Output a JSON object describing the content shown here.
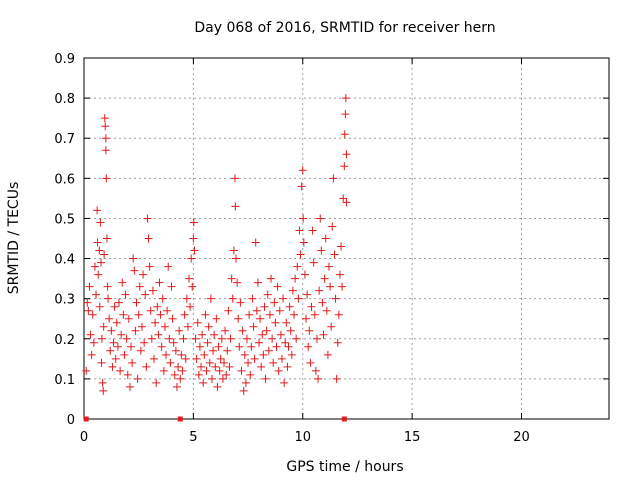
{
  "chart_data": {
    "type": "scatter",
    "title": "Day 068 of 2016, SRMTID for receiver hern",
    "xlabel": "GPS time / hours",
    "ylabel": "SRMTID / TECUs",
    "xlim": [
      0,
      24
    ],
    "ylim": [
      0,
      0.9
    ],
    "xticks": [
      0,
      5,
      10,
      15,
      20
    ],
    "yticks": [
      0,
      0.1,
      0.2,
      0.3,
      0.4,
      0.5,
      0.6,
      0.7,
      0.8,
      0.9
    ],
    "grid": true,
    "color": "#e41a1c",
    "marker": "plus",
    "zero_markers": [
      0.1,
      4.4,
      11.9
    ],
    "series": [
      {
        "name": "SRMTID",
        "points": [
          [
            0.1,
            0.12
          ],
          [
            0.15,
            0.29
          ],
          [
            0.2,
            0.27
          ],
          [
            0.25,
            0.33
          ],
          [
            0.3,
            0.21
          ],
          [
            0.35,
            0.16
          ],
          [
            0.4,
            0.26
          ],
          [
            0.45,
            0.19
          ],
          [
            0.5,
            0.38
          ],
          [
            0.55,
            0.31
          ],
          [
            0.6,
            0.52
          ],
          [
            0.62,
            0.44
          ],
          [
            0.65,
            0.36
          ],
          [
            0.7,
            0.42
          ],
          [
            0.72,
            0.28
          ],
          [
            0.75,
            0.49
          ],
          [
            0.78,
            0.39
          ],
          [
            0.8,
            0.14
          ],
          [
            0.82,
            0.2
          ],
          [
            0.85,
            0.09
          ],
          [
            0.88,
            0.07
          ],
          [
            0.9,
            0.23
          ],
          [
            0.92,
            0.41
          ],
          [
            0.95,
            0.75
          ],
          [
            0.97,
            0.73
          ],
          [
            1.0,
            0.7
          ],
          [
            1.0,
            0.67
          ],
          [
            1.02,
            0.6
          ],
          [
            1.05,
            0.45
          ],
          [
            1.08,
            0.33
          ],
          [
            1.1,
            0.3
          ],
          [
            1.15,
            0.25
          ],
          [
            1.2,
            0.17
          ],
          [
            1.25,
            0.22
          ],
          [
            1.3,
            0.13
          ],
          [
            1.35,
            0.19
          ],
          [
            1.4,
            0.28
          ],
          [
            1.45,
            0.15
          ],
          [
            1.5,
            0.24
          ],
          [
            1.55,
            0.18
          ],
          [
            1.6,
            0.29
          ],
          [
            1.65,
            0.12
          ],
          [
            1.7,
            0.21
          ],
          [
            1.75,
            0.34
          ],
          [
            1.8,
            0.26
          ],
          [
            1.85,
            0.16
          ],
          [
            1.9,
            0.31
          ],
          [
            1.95,
            0.2
          ],
          [
            2.0,
            0.11
          ],
          [
            2.05,
            0.25
          ],
          [
            2.1,
            0.08
          ],
          [
            2.15,
            0.18
          ],
          [
            2.2,
            0.14
          ],
          [
            2.25,
            0.4
          ],
          [
            2.3,
            0.37
          ],
          [
            2.35,
            0.22
          ],
          [
            2.4,
            0.29
          ],
          [
            2.45,
            0.1
          ],
          [
            2.5,
            0.26
          ],
          [
            2.55,
            0.33
          ],
          [
            2.6,
            0.17
          ],
          [
            2.65,
            0.23
          ],
          [
            2.7,
            0.36
          ],
          [
            2.75,
            0.19
          ],
          [
            2.8,
            0.31
          ],
          [
            2.85,
            0.13
          ],
          [
            2.9,
            0.5
          ],
          [
            2.95,
            0.45
          ],
          [
            3.0,
            0.38
          ],
          [
            3.05,
            0.27
          ],
          [
            3.1,
            0.2
          ],
          [
            3.15,
            0.32
          ],
          [
            3.2,
            0.15
          ],
          [
            3.25,
            0.24
          ],
          [
            3.3,
            0.09
          ],
          [
            3.35,
            0.28
          ],
          [
            3.4,
            0.21
          ],
          [
            3.45,
            0.34
          ],
          [
            3.5,
            0.26
          ],
          [
            3.55,
            0.18
          ],
          [
            3.6,
            0.3
          ],
          [
            3.65,
            0.12
          ],
          [
            3.7,
            0.23
          ],
          [
            3.75,
            0.16
          ],
          [
            3.8,
            0.27
          ],
          [
            3.85,
            0.38
          ],
          [
            3.9,
            0.2
          ],
          [
            3.95,
            0.14
          ],
          [
            4.0,
            0.33
          ],
          [
            4.05,
            0.25
          ],
          [
            4.1,
            0.19
          ],
          [
            4.15,
            0.11
          ],
          [
            4.2,
            0.17
          ],
          [
            4.25,
            0.08
          ],
          [
            4.3,
            0.13
          ],
          [
            4.35,
            0.22
          ],
          [
            4.4,
            0.1
          ],
          [
            4.45,
            0.16
          ],
          [
            4.5,
            0.12
          ],
          [
            4.55,
            0.2
          ],
          [
            4.6,
            0.26
          ],
          [
            4.65,
            0.15
          ],
          [
            4.7,
            0.3
          ],
          [
            4.75,
            0.23
          ],
          [
            4.8,
            0.35
          ],
          [
            4.85,
            0.28
          ],
          [
            4.9,
            0.4
          ],
          [
            4.95,
            0.33
          ],
          [
            5.0,
            0.45
          ],
          [
            5.02,
            0.49
          ],
          [
            5.05,
            0.42
          ],
          [
            5.1,
            0.2
          ],
          [
            5.15,
            0.15
          ],
          [
            5.2,
            0.24
          ],
          [
            5.25,
            0.11
          ],
          [
            5.3,
            0.18
          ],
          [
            5.35,
            0.13
          ],
          [
            5.4,
            0.21
          ],
          [
            5.45,
            0.09
          ],
          [
            5.5,
            0.16
          ],
          [
            5.55,
            0.26
          ],
          [
            5.6,
            0.12
          ],
          [
            5.65,
            0.19
          ],
          [
            5.7,
            0.23
          ],
          [
            5.75,
            0.14
          ],
          [
            5.8,
            0.3
          ],
          [
            5.85,
            0.1
          ],
          [
            5.9,
            0.17
          ],
          [
            5.95,
            0.21
          ],
          [
            6.0,
            0.13
          ],
          [
            6.05,
            0.25
          ],
          [
            6.1,
            0.08
          ],
          [
            6.15,
            0.18
          ],
          [
            6.2,
            0.12
          ],
          [
            6.25,
            0.15
          ],
          [
            6.3,
            0.2
          ],
          [
            6.35,
            0.1
          ],
          [
            6.4,
            0.14
          ],
          [
            6.45,
            0.22
          ],
          [
            6.5,
            0.11
          ],
          [
            6.55,
            0.17
          ],
          [
            6.6,
            0.27
          ],
          [
            6.65,
            0.13
          ],
          [
            6.7,
            0.2
          ],
          [
            6.75,
            0.35
          ],
          [
            6.8,
            0.3
          ],
          [
            6.85,
            0.42
          ],
          [
            6.9,
            0.6
          ],
          [
            6.92,
            0.53
          ],
          [
            6.95,
            0.4
          ],
          [
            7.0,
            0.34
          ],
          [
            7.05,
            0.25
          ],
          [
            7.1,
            0.18
          ],
          [
            7.15,
            0.29
          ],
          [
            7.2,
            0.12
          ],
          [
            7.25,
            0.22
          ],
          [
            7.3,
            0.07
          ],
          [
            7.35,
            0.16
          ],
          [
            7.4,
            0.09
          ],
          [
            7.45,
            0.2
          ],
          [
            7.5,
            0.14
          ],
          [
            7.55,
            0.26
          ],
          [
            7.6,
            0.11
          ],
          [
            7.65,
            0.18
          ],
          [
            7.7,
            0.3
          ],
          [
            7.75,
            0.23
          ],
          [
            7.8,
            0.15
          ],
          [
            7.85,
            0.44
          ],
          [
            7.9,
            0.27
          ],
          [
            7.95,
            0.34
          ],
          [
            8.0,
            0.19
          ],
          [
            8.05,
            0.25
          ],
          [
            8.1,
            0.13
          ],
          [
            8.15,
            0.21
          ],
          [
            8.2,
            0.16
          ],
          [
            8.25,
            0.28
          ],
          [
            8.3,
            0.1
          ],
          [
            8.35,
            0.22
          ],
          [
            8.4,
            0.31
          ],
          [
            8.45,
            0.17
          ],
          [
            8.5,
            0.26
          ],
          [
            8.55,
            0.35
          ],
          [
            8.6,
            0.2
          ],
          [
            8.65,
            0.14
          ],
          [
            8.7,
            0.29
          ],
          [
            8.75,
            0.24
          ],
          [
            8.8,
            0.18
          ],
          [
            8.85,
            0.33
          ],
          [
            8.9,
            0.12
          ],
          [
            8.95,
            0.27
          ],
          [
            9.0,
            0.21
          ],
          [
            9.05,
            0.15
          ],
          [
            9.1,
            0.3
          ],
          [
            9.15,
            0.09
          ],
          [
            9.2,
            0.19
          ],
          [
            9.25,
            0.24
          ],
          [
            9.3,
            0.13
          ],
          [
            9.35,
            0.18
          ],
          [
            9.4,
            0.28
          ],
          [
            9.45,
            0.22
          ],
          [
            9.5,
            0.16
          ],
          [
            9.55,
            0.32
          ],
          [
            9.6,
            0.26
          ],
          [
            9.65,
            0.35
          ],
          [
            9.7,
            0.2
          ],
          [
            9.75,
            0.38
          ],
          [
            9.8,
            0.3
          ],
          [
            9.85,
            0.47
          ],
          [
            9.9,
            0.41
          ],
          [
            9.95,
            0.58
          ],
          [
            10.0,
            0.62
          ],
          [
            10.02,
            0.5
          ],
          [
            10.05,
            0.44
          ],
          [
            10.1,
            0.36
          ],
          [
            10.15,
            0.25
          ],
          [
            10.2,
            0.31
          ],
          [
            10.25,
            0.18
          ],
          [
            10.3,
            0.22
          ],
          [
            10.35,
            0.14
          ],
          [
            10.4,
            0.28
          ],
          [
            10.45,
            0.47
          ],
          [
            10.5,
            0.39
          ],
          [
            10.55,
            0.26
          ],
          [
            10.6,
            0.12
          ],
          [
            10.65,
            0.2
          ],
          [
            10.7,
            0.1
          ],
          [
            10.75,
            0.32
          ],
          [
            10.8,
            0.5
          ],
          [
            10.85,
            0.42
          ],
          [
            10.9,
            0.29
          ],
          [
            10.95,
            0.21
          ],
          [
            11.0,
            0.35
          ],
          [
            11.05,
            0.45
          ],
          [
            11.1,
            0.27
          ],
          [
            11.15,
            0.16
          ],
          [
            11.2,
            0.38
          ],
          [
            11.25,
            0.33
          ],
          [
            11.3,
            0.23
          ],
          [
            11.35,
            0.48
          ],
          [
            11.4,
            0.6
          ],
          [
            11.45,
            0.41
          ],
          [
            11.5,
            0.3
          ],
          [
            11.55,
            0.1
          ],
          [
            11.6,
            0.19
          ],
          [
            11.65,
            0.26
          ],
          [
            11.7,
            0.36
          ],
          [
            11.75,
            0.43
          ],
          [
            11.8,
            0.33
          ],
          [
            11.85,
            0.55
          ],
          [
            11.9,
            0.63
          ],
          [
            11.92,
            0.71
          ],
          [
            11.95,
            0.76
          ],
          [
            11.97,
            0.8
          ],
          [
            12.0,
            0.66
          ],
          [
            12.0,
            0.54
          ]
        ]
      }
    ]
  }
}
